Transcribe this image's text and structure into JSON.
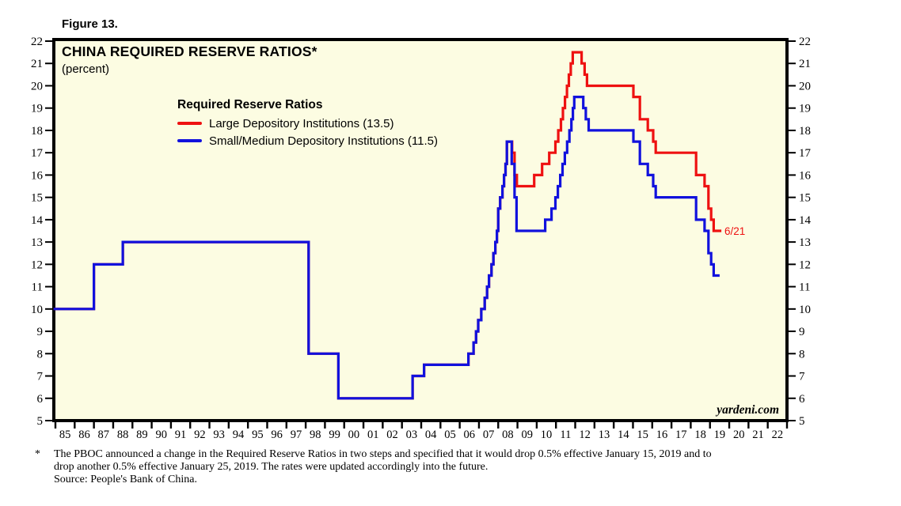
{
  "figure_label": "Figure 13.",
  "chart": {
    "title": "CHINA REQUIRED RESERVE RATIOS*",
    "subtitle": "(percent)",
    "legend_title": "Required Reserve Ratios",
    "watermark": "yardeni.com",
    "plot_bg": "#FCFCE2",
    "frame_color": "#000000"
  },
  "chart_data": {
    "type": "line",
    "title": "CHINA REQUIRED RESERVE RATIOS*",
    "ylabel": "percent",
    "grid": false,
    "legend_position": "top-left-inside",
    "x_axis": {
      "min_year": 1985,
      "max_year": 2023,
      "tick_step_years": 1,
      "tick_labels": [
        "85",
        "86",
        "87",
        "88",
        "89",
        "90",
        "91",
        "92",
        "93",
        "94",
        "95",
        "96",
        "97",
        "98",
        "99",
        "00",
        "01",
        "02",
        "03",
        "04",
        "05",
        "06",
        "07",
        "08",
        "09",
        "10",
        "11",
        "12",
        "13",
        "14",
        "15",
        "16",
        "17",
        "18",
        "19",
        "20",
        "21",
        "22"
      ]
    },
    "y_axis": {
      "min": 5,
      "max": 22,
      "tick_interval": 1,
      "sides": "both",
      "tick_values": [
        5,
        6,
        7,
        8,
        9,
        10,
        11,
        12,
        13,
        14,
        15,
        16,
        17,
        18,
        19,
        20,
        21,
        22
      ]
    },
    "series": [
      {
        "name": "Large Depository Institutions (13.5)",
        "color": "#EE1111",
        "latest_value": 13.5,
        "end_x": 2019.59,
        "step_points": [
          [
            1984.9,
            10
          ],
          [
            1987.0,
            12
          ],
          [
            1988.5,
            13
          ],
          [
            1998.15,
            8
          ],
          [
            1999.7,
            6
          ],
          [
            2003.55,
            7
          ],
          [
            2004.15,
            7.5
          ],
          [
            2006.45,
            8
          ],
          [
            2006.72,
            8.5
          ],
          [
            2006.85,
            9
          ],
          [
            2006.96,
            9.5
          ],
          [
            2007.12,
            10
          ],
          [
            2007.3,
            10.5
          ],
          [
            2007.42,
            11
          ],
          [
            2007.52,
            11.5
          ],
          [
            2007.65,
            12
          ],
          [
            2007.75,
            12.5
          ],
          [
            2007.85,
            13
          ],
          [
            2007.93,
            13.5
          ],
          [
            2008.0,
            14.5
          ],
          [
            2008.1,
            15
          ],
          [
            2008.22,
            15.5
          ],
          [
            2008.3,
            16
          ],
          [
            2008.38,
            16.5
          ],
          [
            2008.45,
            17.5
          ],
          [
            2008.72,
            17
          ],
          [
            2008.85,
            16
          ],
          [
            2008.97,
            15.5
          ],
          [
            2009.87,
            16
          ],
          [
            2010.28,
            16.5
          ],
          [
            2010.65,
            17
          ],
          [
            2010.97,
            17.5
          ],
          [
            2011.12,
            18
          ],
          [
            2011.26,
            18.5
          ],
          [
            2011.36,
            19
          ],
          [
            2011.47,
            19.5
          ],
          [
            2011.57,
            20
          ],
          [
            2011.67,
            20.5
          ],
          [
            2011.77,
            21
          ],
          [
            2011.87,
            21.5
          ],
          [
            2012.33,
            21
          ],
          [
            2012.49,
            20.5
          ],
          [
            2012.61,
            20
          ],
          [
            2015.02,
            19.5
          ],
          [
            2015.36,
            18.5
          ],
          [
            2015.77,
            18
          ],
          [
            2016.05,
            17.5
          ],
          [
            2016.18,
            17
          ],
          [
            2018.28,
            16
          ],
          [
            2018.72,
            15.5
          ],
          [
            2018.92,
            14.5
          ],
          [
            2019.06,
            14
          ],
          [
            2019.19,
            13.5
          ]
        ]
      },
      {
        "name": "Small/Medium Depository Institutions (11.5)",
        "color": "#1111DD",
        "latest_value": 11.5,
        "end_x": 2019.5,
        "step_points": [
          [
            1984.9,
            10
          ],
          [
            1987.0,
            12
          ],
          [
            1988.5,
            13
          ],
          [
            1998.15,
            8
          ],
          [
            1999.7,
            6
          ],
          [
            2003.55,
            7
          ],
          [
            2004.15,
            7.5
          ],
          [
            2006.45,
            8
          ],
          [
            2006.72,
            8.5
          ],
          [
            2006.85,
            9
          ],
          [
            2006.96,
            9.5
          ],
          [
            2007.12,
            10
          ],
          [
            2007.3,
            10.5
          ],
          [
            2007.42,
            11
          ],
          [
            2007.52,
            11.5
          ],
          [
            2007.65,
            12
          ],
          [
            2007.75,
            12.5
          ],
          [
            2007.85,
            13
          ],
          [
            2007.93,
            13.5
          ],
          [
            2008.0,
            14.5
          ],
          [
            2008.1,
            15
          ],
          [
            2008.22,
            15.5
          ],
          [
            2008.3,
            16
          ],
          [
            2008.38,
            16.5
          ],
          [
            2008.45,
            17.5
          ],
          [
            2008.7,
            16.5
          ],
          [
            2008.85,
            15
          ],
          [
            2008.95,
            13.5
          ],
          [
            2010.44,
            14
          ],
          [
            2010.77,
            14.5
          ],
          [
            2010.97,
            15
          ],
          [
            2011.1,
            15.5
          ],
          [
            2011.22,
            16
          ],
          [
            2011.34,
            16.5
          ],
          [
            2011.46,
            17
          ],
          [
            2011.58,
            17.5
          ],
          [
            2011.7,
            18
          ],
          [
            2011.8,
            18.5
          ],
          [
            2011.88,
            19
          ],
          [
            2011.95,
            19.5
          ],
          [
            2012.42,
            19
          ],
          [
            2012.55,
            18.5
          ],
          [
            2012.7,
            18
          ],
          [
            2015.02,
            17.5
          ],
          [
            2015.36,
            16.5
          ],
          [
            2015.77,
            16
          ],
          [
            2016.05,
            15.5
          ],
          [
            2016.18,
            15
          ],
          [
            2018.28,
            14
          ],
          [
            2018.72,
            13.5
          ],
          [
            2018.92,
            12.5
          ],
          [
            2019.06,
            12
          ],
          [
            2019.19,
            11.5
          ]
        ]
      }
    ],
    "annotation": {
      "text": "6/21",
      "x": 2019.75,
      "y": 13.5,
      "color": "#EE1111"
    }
  },
  "footnote": {
    "marker": "*",
    "lines": [
      "The PBOC announced a change in the Required Reserve Ratios in two steps and specified that it would drop 0.5% effective January 15, 2019 and to",
      "drop another 0.5% effective January 25, 2019. The rates were updated accordingly into the future.",
      "Source: People's Bank of China."
    ]
  }
}
